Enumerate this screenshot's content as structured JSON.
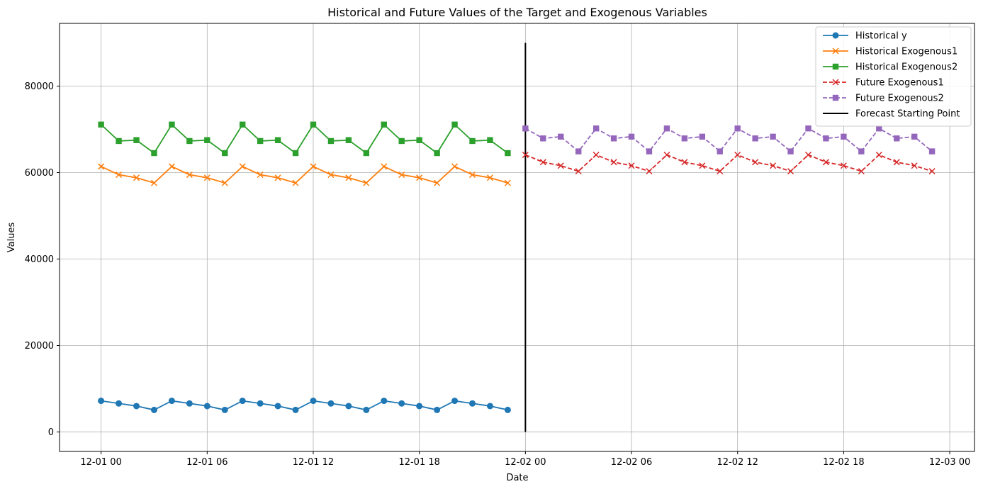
{
  "chart_data": {
    "type": "line",
    "title": "Historical and Future Values of the Target and Exogenous Variables",
    "xlabel": "Date",
    "ylabel": "Values",
    "x_ticks": [
      "12-01 00",
      "12-01 06",
      "12-01 12",
      "12-01 18",
      "12-02 00",
      "12-02 06",
      "12-02 12",
      "12-02 18",
      "12-03 00"
    ],
    "x_tick_hours": [
      0,
      6,
      12,
      18,
      24,
      30,
      36,
      42,
      48
    ],
    "y_ticks": [
      0,
      20000,
      40000,
      60000,
      80000
    ],
    "xlim_hours": [
      -2.35,
      49.4
    ],
    "ylim": [
      -4500,
      94500
    ],
    "grid": true,
    "legend_position": "top-right",
    "series": [
      {
        "name": "Historical y",
        "color": "#1f77b4",
        "linestyle": "solid",
        "marker": "circle",
        "x_hours": [
          0,
          1,
          2,
          3,
          4,
          5,
          6,
          7,
          8,
          9,
          10,
          11,
          12,
          13,
          14,
          15,
          16,
          17,
          18,
          19,
          20,
          21,
          22,
          23
        ],
        "values": [
          7200,
          6600,
          6000,
          5100,
          7200,
          6600,
          6000,
          5100,
          7200,
          6600,
          6000,
          5100,
          7200,
          6600,
          6000,
          5100,
          7200,
          6600,
          6000,
          5100,
          7200,
          6600,
          6000,
          5100
        ]
      },
      {
        "name": "Historical Exogenous1",
        "color": "#ff7f0e",
        "linestyle": "solid",
        "marker": "x",
        "x_hours": [
          0,
          1,
          2,
          3,
          4,
          5,
          6,
          7,
          8,
          9,
          10,
          11,
          12,
          13,
          14,
          15,
          16,
          17,
          18,
          19,
          20,
          21,
          22,
          23
        ],
        "values": [
          61400,
          59500,
          58800,
          57600,
          61400,
          59500,
          58800,
          57600,
          61400,
          59500,
          58800,
          57600,
          61400,
          59500,
          58800,
          57600,
          61400,
          59500,
          58800,
          57600,
          61400,
          59500,
          58800,
          57600
        ]
      },
      {
        "name": "Historical Exogenous2",
        "color": "#2ca02c",
        "linestyle": "solid",
        "marker": "square",
        "x_hours": [
          0,
          1,
          2,
          3,
          4,
          5,
          6,
          7,
          8,
          9,
          10,
          11,
          12,
          13,
          14,
          15,
          16,
          17,
          18,
          19,
          20,
          21,
          22,
          23
        ],
        "values": [
          71100,
          67300,
          67500,
          64500,
          71100,
          67300,
          67500,
          64500,
          71100,
          67300,
          67500,
          64500,
          71100,
          67300,
          67500,
          64500,
          71100,
          67300,
          67500,
          64500,
          71100,
          67300,
          67500,
          64500
        ]
      },
      {
        "name": "Future Exogenous1",
        "color": "#d62728",
        "linestyle": "dashed",
        "marker": "x",
        "x_hours": [
          24,
          25,
          26,
          27,
          28,
          29,
          30,
          31,
          32,
          33,
          34,
          35,
          36,
          37,
          38,
          39,
          40,
          41,
          42,
          43,
          44,
          45,
          46,
          47
        ],
        "values": [
          64100,
          62400,
          61600,
          60300,
          64100,
          62400,
          61600,
          60300,
          64100,
          62400,
          61600,
          60300,
          64100,
          62400,
          61600,
          60300,
          64100,
          62400,
          61600,
          60300,
          64100,
          62400,
          61600,
          60300
        ]
      },
      {
        "name": "Future Exogenous2",
        "color": "#9467bd",
        "linestyle": "dashed",
        "marker": "square",
        "x_hours": [
          24,
          25,
          26,
          27,
          28,
          29,
          30,
          31,
          32,
          33,
          34,
          35,
          36,
          37,
          38,
          39,
          40,
          41,
          42,
          43,
          44,
          45,
          46,
          47
        ],
        "values": [
          70200,
          67900,
          68300,
          64900,
          70200,
          67900,
          68300,
          64900,
          70200,
          67900,
          68300,
          64900,
          70200,
          67900,
          68300,
          64900,
          70200,
          67900,
          68300,
          64900,
          70200,
          67900,
          68300,
          64900
        ]
      }
    ],
    "vertical_line": {
      "name": "Forecast Starting Point",
      "color": "#000000",
      "x_hour": 24,
      "y_range": [
        0,
        90000
      ]
    }
  }
}
